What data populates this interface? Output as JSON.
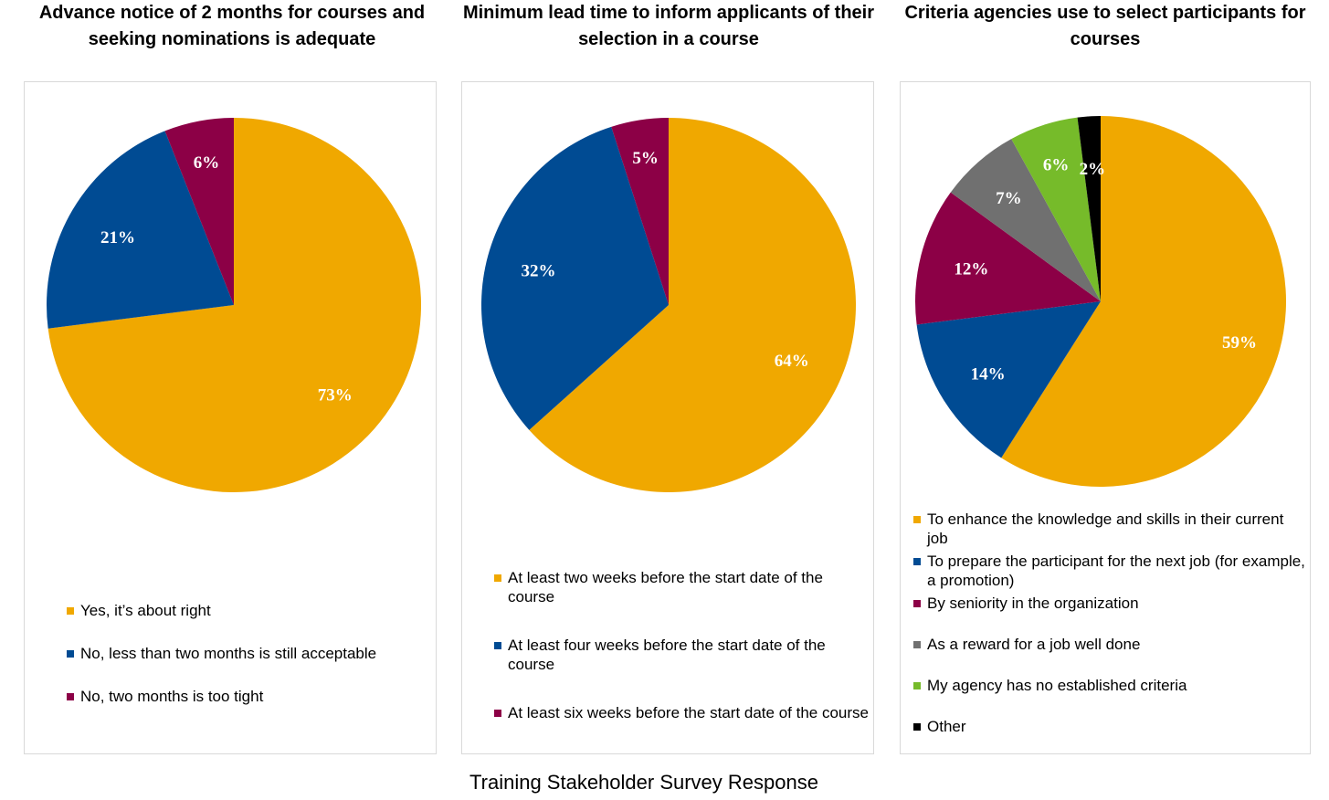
{
  "colors": {
    "gold": "#f0a800",
    "blue": "#004b93",
    "maroon": "#8c0046",
    "gray": "#707070",
    "green": "#76bb2a",
    "black": "#000000"
  },
  "footer": "Training Stakeholder Survey Response",
  "chart_data": [
    {
      "type": "pie",
      "title": "Advance notice of 2 months for courses and seeking nominations is adequate",
      "series": [
        {
          "name": "Yes, it’s about right",
          "value": 73,
          "label": "73%",
          "color": "#f0a800"
        },
        {
          "name": "No, less than two months is still acceptable",
          "value": 21,
          "label": "21%",
          "color": "#004b93"
        },
        {
          "name": "No, two months is too tight",
          "value": 6,
          "label": "6%",
          "color": "#8c0046"
        }
      ],
      "legend": "bottom"
    },
    {
      "type": "pie",
      "title": "Minimum lead time to inform applicants of their selection in a course",
      "series": [
        {
          "name": "At least two weeks before the start date of the course",
          "value": 64,
          "label": "64%",
          "color": "#f0a800"
        },
        {
          "name": "At least four weeks before the start date of the course",
          "value": 32,
          "label": "32%",
          "color": "#004b93"
        },
        {
          "name": "At least six weeks before the start date of the course",
          "value": 5,
          "label": "5%",
          "color": "#8c0046"
        }
      ],
      "legend": "bottom"
    },
    {
      "type": "pie",
      "title": "Criteria agencies use to select participants for courses",
      "series": [
        {
          "name": "To enhance the knowledge and skills in their current job",
          "value": 59,
          "label": "59%",
          "color": "#f0a800"
        },
        {
          "name": "To prepare the participant for the next job (for example, a promotion)",
          "value": 14,
          "label": "14%",
          "color": "#004b93"
        },
        {
          "name": "By seniority in the organization",
          "value": 12,
          "label": "12%",
          "color": "#8c0046"
        },
        {
          "name": "As a reward for a job well done",
          "value": 7,
          "label": "7%",
          "color": "#707070"
        },
        {
          "name": "My agency has no established criteria",
          "value": 6,
          "label": "6%",
          "color": "#76bb2a"
        },
        {
          "name": "Other",
          "value": 2,
          "label": "2%",
          "color": "#000000"
        }
      ],
      "legend": "bottom"
    }
  ]
}
